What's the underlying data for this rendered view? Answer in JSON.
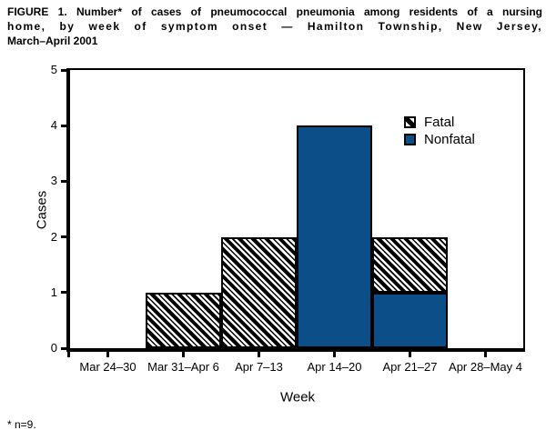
{
  "figure": {
    "title_lines": [
      "FIGURE 1. Number* of cases of pneumococcal pneumonia among residents of a nursing",
      "home, by week of symptom onset — Hamilton Township, New Jersey,",
      "March–April 2001"
    ],
    "footnote": "* n=9."
  },
  "chart_data": {
    "type": "bar",
    "stacked": true,
    "title": "FIGURE 1. Number* of cases of pneumococcal pneumonia among residents of a nursing home, by week of symptom onset — Hamilton Township, New Jersey, March–April 2001",
    "categories": [
      "Mar 24–30",
      "Mar 31–Apr 6",
      "Apr 7–13",
      "Apr 14–20",
      "Apr 21–27",
      "Apr 28–May 4"
    ],
    "series": [
      {
        "name": "Fatal",
        "pattern": "hatch",
        "values": [
          0,
          1,
          2,
          0,
          1,
          0
        ]
      },
      {
        "name": "Nonfatal",
        "pattern": "solid",
        "values": [
          0,
          0,
          0,
          4,
          1,
          0
        ]
      }
    ],
    "totals": [
      0,
      1,
      2,
      4,
      2,
      0
    ],
    "xlabel": "Week",
    "ylabel": "Cases",
    "ylim": [
      0,
      5
    ],
    "yticks": [
      0,
      1,
      2,
      3,
      4,
      5
    ],
    "grid": false,
    "legend_position": "top-right-inside",
    "colors": {
      "nonfatal_blue": "#0C4E87",
      "hatch_foreground": "#000000",
      "hatch_background": "#FFFFFF",
      "axis": "#000000"
    }
  }
}
